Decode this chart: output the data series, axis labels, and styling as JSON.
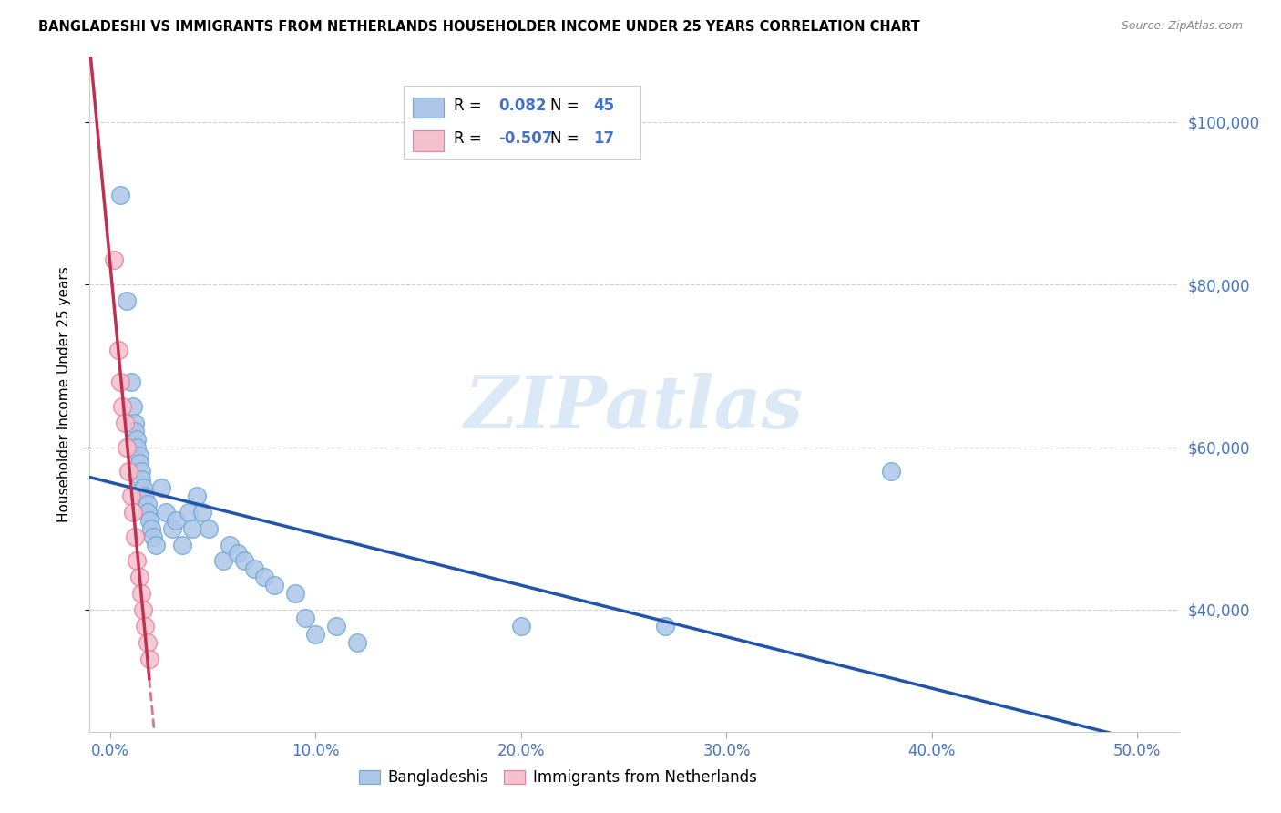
{
  "title": "BANGLADESHI VS IMMIGRANTS FROM NETHERLANDS HOUSEHOLDER INCOME UNDER 25 YEARS CORRELATION CHART",
  "source": "Source: ZipAtlas.com",
  "ylabel": "Householder Income Under 25 years",
  "xlabel_ticks": [
    "0.0%",
    "10.0%",
    "20.0%",
    "30.0%",
    "40.0%",
    "50.0%"
  ],
  "xlabel_tick_vals": [
    0.0,
    0.1,
    0.2,
    0.3,
    0.4,
    0.5
  ],
  "ylabel_ticks": [
    "$40,000",
    "$60,000",
    "$80,000",
    "$100,000"
  ],
  "ylabel_tick_vals": [
    40000,
    60000,
    80000,
    100000
  ],
  "xlim": [
    -0.01,
    0.52
  ],
  "ylim": [
    25000,
    108000
  ],
  "bangladeshi_x": [
    0.005,
    0.008,
    0.01,
    0.011,
    0.012,
    0.012,
    0.013,
    0.013,
    0.014,
    0.014,
    0.015,
    0.015,
    0.016,
    0.017,
    0.018,
    0.018,
    0.019,
    0.02,
    0.021,
    0.022,
    0.025,
    0.027,
    0.03,
    0.032,
    0.035,
    0.038,
    0.04,
    0.042,
    0.045,
    0.048,
    0.055,
    0.058,
    0.062,
    0.065,
    0.07,
    0.075,
    0.08,
    0.09,
    0.095,
    0.1,
    0.11,
    0.12,
    0.2,
    0.27,
    0.38
  ],
  "bangladeshi_y": [
    91000,
    78000,
    68000,
    65000,
    63000,
    62000,
    61000,
    60000,
    59000,
    58000,
    57000,
    56000,
    55000,
    54000,
    53000,
    52000,
    51000,
    50000,
    49000,
    48000,
    55000,
    52000,
    50000,
    51000,
    48000,
    52000,
    50000,
    54000,
    52000,
    50000,
    46000,
    48000,
    47000,
    46000,
    45000,
    44000,
    43000,
    42000,
    39000,
    37000,
    38000,
    36000,
    38000,
    38000,
    57000
  ],
  "netherlands_x": [
    0.002,
    0.004,
    0.005,
    0.006,
    0.007,
    0.008,
    0.009,
    0.01,
    0.011,
    0.012,
    0.013,
    0.014,
    0.015,
    0.016,
    0.017,
    0.018,
    0.019
  ],
  "netherlands_y": [
    83000,
    72000,
    68000,
    65000,
    63000,
    60000,
    57000,
    54000,
    52000,
    49000,
    46000,
    44000,
    42000,
    40000,
    38000,
    36000,
    34000
  ],
  "bangladeshi_color": "#adc6e8",
  "bangladeshi_edge": "#6fa8d4",
  "netherlands_color": "#f5c0ce",
  "netherlands_edge": "#e8809a",
  "trend_bangladeshi_color": "#2255aa",
  "trend_netherlands_color": "#c03050",
  "watermark_text": "ZIPatlas",
  "watermark_color": "#b8d4f0",
  "R_bangladeshi": "0.082",
  "N_bangladeshi": "45",
  "R_netherlands": "-0.507",
  "N_netherlands": "17",
  "background_color": "#ffffff",
  "grid_color": "#d0d0d0",
  "label_color": "#4472c4",
  "legend_r_n_color": "#4472c4"
}
